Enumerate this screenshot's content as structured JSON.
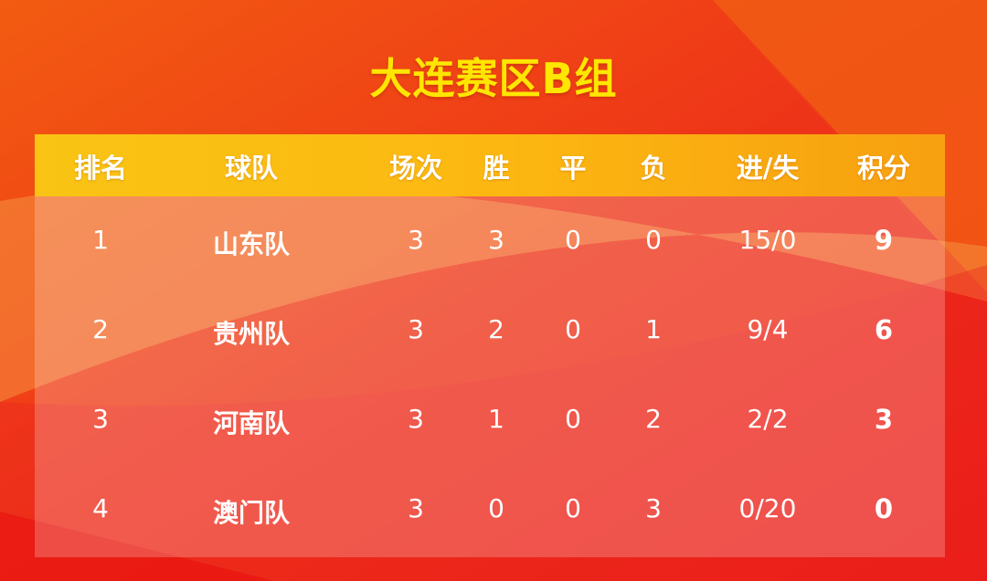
{
  "title": "大连赛区B组",
  "colors": {
    "title": "#ffe600",
    "header_bg": "#fcb811",
    "background_red": "#ee1c1c",
    "background_orange": "#f36a14"
  },
  "table": {
    "headers": [
      "排名",
      "球队",
      "场次",
      "胜",
      "平",
      "负",
      "进/失",
      "积分"
    ],
    "rows": [
      [
        "1",
        "山东队",
        "3",
        "3",
        "0",
        "0",
        "15/0",
        "9"
      ],
      [
        "2",
        "贵州队",
        "3",
        "2",
        "0",
        "1",
        "9/4",
        "6"
      ],
      [
        "3",
        "河南队",
        "3",
        "1",
        "0",
        "2",
        "2/2",
        "3"
      ],
      [
        "4",
        "澳门队",
        "3",
        "0",
        "0",
        "3",
        "0/20",
        "0"
      ]
    ]
  }
}
